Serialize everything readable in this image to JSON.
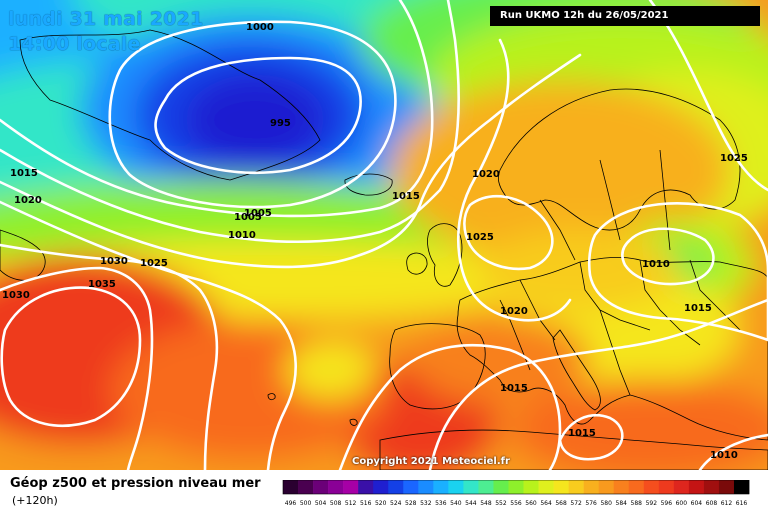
{
  "header": {
    "date_line": "lundi 31 mai 2021",
    "time_line": "14:00 locale",
    "run_info": "Run UKMO 12h du 26/05/2021"
  },
  "footer": {
    "title": "Géop z500 et pression niveau mer",
    "subtitle": "(+120h)",
    "copyright": "Copyright 2021 Meteociel.fr"
  },
  "isobar_labels": [
    "1000",
    "1005",
    "995",
    "1015",
    "1020",
    "1005",
    "1010",
    "1015",
    "1020",
    "1025",
    "1025",
    "1030",
    "1025",
    "1035",
    "1030",
    "1010",
    "1020",
    "1015",
    "1015",
    "1015",
    "1010"
  ],
  "scale": {
    "values": [
      "496",
      "500",
      "504",
      "508",
      "512",
      "516",
      "520",
      "524",
      "528",
      "532",
      "536",
      "540",
      "544",
      "548",
      "552",
      "556",
      "560",
      "564",
      "568",
      "572",
      "576",
      "580",
      "584",
      "588",
      "592",
      "596",
      "600",
      "604",
      "608",
      "612",
      "616"
    ],
    "colors": [
      "#2a0030",
      "#4a0050",
      "#6b0078",
      "#8a0096",
      "#a600a6",
      "#3a10a8",
      "#1f1fd0",
      "#1440e6",
      "#1a66ff",
      "#1a8cff",
      "#1ab0ff",
      "#1ad2f0",
      "#33e6c8",
      "#4ded92",
      "#66ee4d",
      "#8ef02b",
      "#b8f21c",
      "#dff01e",
      "#f5e61e",
      "#f8cc1e",
      "#f8b01e",
      "#f89a1e",
      "#f8801e",
      "#f86a1e",
      "#f54e1e",
      "#ee3a1e",
      "#de261e",
      "#c41414",
      "#a00f0f",
      "#7a0a0a",
      "#000000"
    ]
  }
}
